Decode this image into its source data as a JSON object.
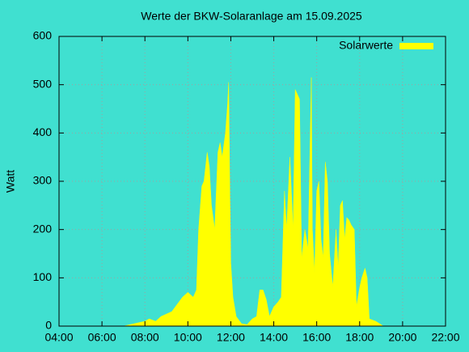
{
  "chart_data": {
    "type": "area",
    "title": "Werte der BKW-Solaranlage am 15.09.2025",
    "y_label": "Watt",
    "color": "#ffff00",
    "legend": "top-right",
    "grid": true,
    "xlim": [
      4,
      22
    ],
    "ylim": [
      0,
      600
    ],
    "xticks": [
      {
        "value": 4,
        "label": "04:00"
      },
      {
        "value": 6,
        "label": "06:00"
      },
      {
        "value": 8,
        "label": "08:00"
      },
      {
        "value": 10,
        "label": "10:00"
      },
      {
        "value": 12,
        "label": "12:00"
      },
      {
        "value": 14,
        "label": "14:00"
      },
      {
        "value": 16,
        "label": "16:00"
      },
      {
        "value": 18,
        "label": "18:00"
      },
      {
        "value": 20,
        "label": "20:00"
      },
      {
        "value": 22,
        "label": "22:00"
      }
    ],
    "yticks": [
      0,
      100,
      200,
      300,
      400,
      500,
      600
    ],
    "series": [
      {
        "name": "Solarwerte",
        "color": "#ffff00",
        "x": [
          7.0,
          7.5,
          8.0,
          8.2,
          8.5,
          8.75,
          9.0,
          9.25,
          9.5,
          9.75,
          10.0,
          10.25,
          10.4,
          10.5,
          10.65,
          10.75,
          10.9,
          11.0,
          11.1,
          11.25,
          11.4,
          11.5,
          11.6,
          11.75,
          11.85,
          11.9,
          11.95,
          12.0,
          12.1,
          12.25,
          12.5,
          12.75,
          13.0,
          13.2,
          13.35,
          13.5,
          13.65,
          13.8,
          14.0,
          14.2,
          14.35,
          14.5,
          14.6,
          14.75,
          14.9,
          15.0,
          15.1,
          15.2,
          15.3,
          15.45,
          15.6,
          15.7,
          15.75,
          15.8,
          15.9,
          16.0,
          16.1,
          16.2,
          16.3,
          16.4,
          16.5,
          16.6,
          16.75,
          16.9,
          17.0,
          17.1,
          17.2,
          17.3,
          17.4,
          17.5,
          17.6,
          17.75,
          17.85,
          18.0,
          18.1,
          18.25,
          18.35,
          18.45,
          18.75,
          19.0,
          19.1
        ],
        "values": [
          0,
          5,
          10,
          15,
          10,
          20,
          25,
          30,
          45,
          60,
          70,
          60,
          75,
          200,
          290,
          300,
          360,
          330,
          250,
          200,
          360,
          380,
          350,
          400,
          460,
          505,
          300,
          130,
          60,
          20,
          5,
          3,
          15,
          20,
          75,
          75,
          55,
          20,
          40,
          50,
          60,
          280,
          200,
          350,
          200,
          490,
          480,
          470,
          140,
          200,
          160,
          400,
          515,
          200,
          110,
          280,
          300,
          180,
          140,
          340,
          300,
          150,
          80,
          200,
          120,
          250,
          260,
          180,
          225,
          220,
          210,
          200,
          40,
          80,
          100,
          120,
          100,
          15,
          10,
          3,
          0
        ]
      }
    ]
  }
}
